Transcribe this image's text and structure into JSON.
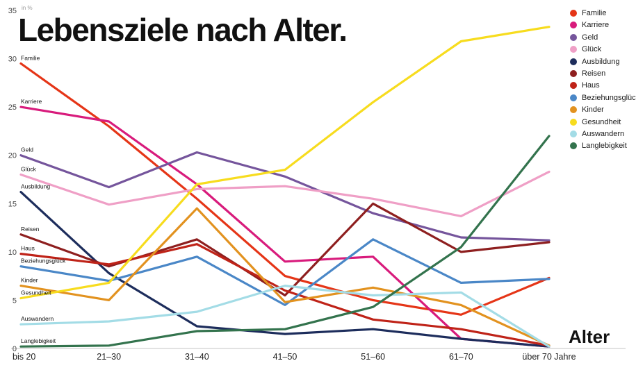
{
  "title": "Lebensziele nach Alter.",
  "unit_label": "in %",
  "x_axis_label": "Alter",
  "chart_data": {
    "type": "line",
    "title": "Lebensziele nach Alter.",
    "ylabel": "in %",
    "xlabel": "Alter",
    "ylim": [
      0,
      35
    ],
    "yticks": [
      0,
      5,
      10,
      15,
      20,
      25,
      30,
      35
    ],
    "grid": false,
    "legend_position": "top-right",
    "categories": [
      "bis 20",
      "21–30",
      "31–40",
      "41–50",
      "51–60",
      "61–70",
      "über 70 Jahre"
    ],
    "series": [
      {
        "name": "Familie",
        "color": "#e53517",
        "values": [
          29.5,
          23.0,
          15.5,
          7.5,
          5.0,
          3.5,
          7.3
        ]
      },
      {
        "name": "Karriere",
        "color": "#d81b7c",
        "values": [
          25.0,
          23.5,
          17.0,
          9.0,
          9.5,
          1.0,
          0.2
        ]
      },
      {
        "name": "Geld",
        "color": "#75559c",
        "values": [
          20.0,
          16.7,
          20.3,
          17.8,
          14.0,
          11.5,
          11.2
        ]
      },
      {
        "name": "Glück",
        "color": "#ef9fc6",
        "values": [
          18.0,
          14.9,
          16.5,
          16.8,
          15.5,
          13.7,
          18.3
        ]
      },
      {
        "name": "Ausbildung",
        "color": "#1d2d5c",
        "values": [
          16.2,
          7.8,
          2.3,
          1.5,
          2.0,
          1.0,
          0.2
        ]
      },
      {
        "name": "Reisen",
        "color": "#8e1f1f",
        "values": [
          11.8,
          8.5,
          11.3,
          5.5,
          15.0,
          10.0,
          11.0
        ]
      },
      {
        "name": "Haus",
        "color": "#bf2318",
        "values": [
          9.8,
          8.7,
          10.8,
          6.0,
          3.0,
          2.0,
          0.3
        ]
      },
      {
        "name": "Beziehungsglück",
        "color": "#4a87c7",
        "values": [
          8.5,
          7.0,
          9.5,
          4.5,
          11.3,
          6.8,
          7.2
        ]
      },
      {
        "name": "Kinder",
        "color": "#e2921f",
        "values": [
          6.5,
          5.0,
          14.5,
          4.8,
          6.3,
          4.5,
          0.3
        ]
      },
      {
        "name": "Gesundheit",
        "color": "#f7dc1e",
        "values": [
          5.2,
          6.8,
          17.0,
          18.5,
          25.5,
          31.8,
          33.3
        ]
      },
      {
        "name": "Auswandern",
        "color": "#a3dce6",
        "values": [
          2.5,
          2.8,
          3.8,
          6.5,
          5.5,
          5.8,
          0.2
        ]
      },
      {
        "name": "Langlebigkeit",
        "color": "#33734d",
        "values": [
          0.2,
          0.3,
          1.8,
          2.0,
          4.3,
          10.5,
          22.0
        ]
      }
    ]
  }
}
